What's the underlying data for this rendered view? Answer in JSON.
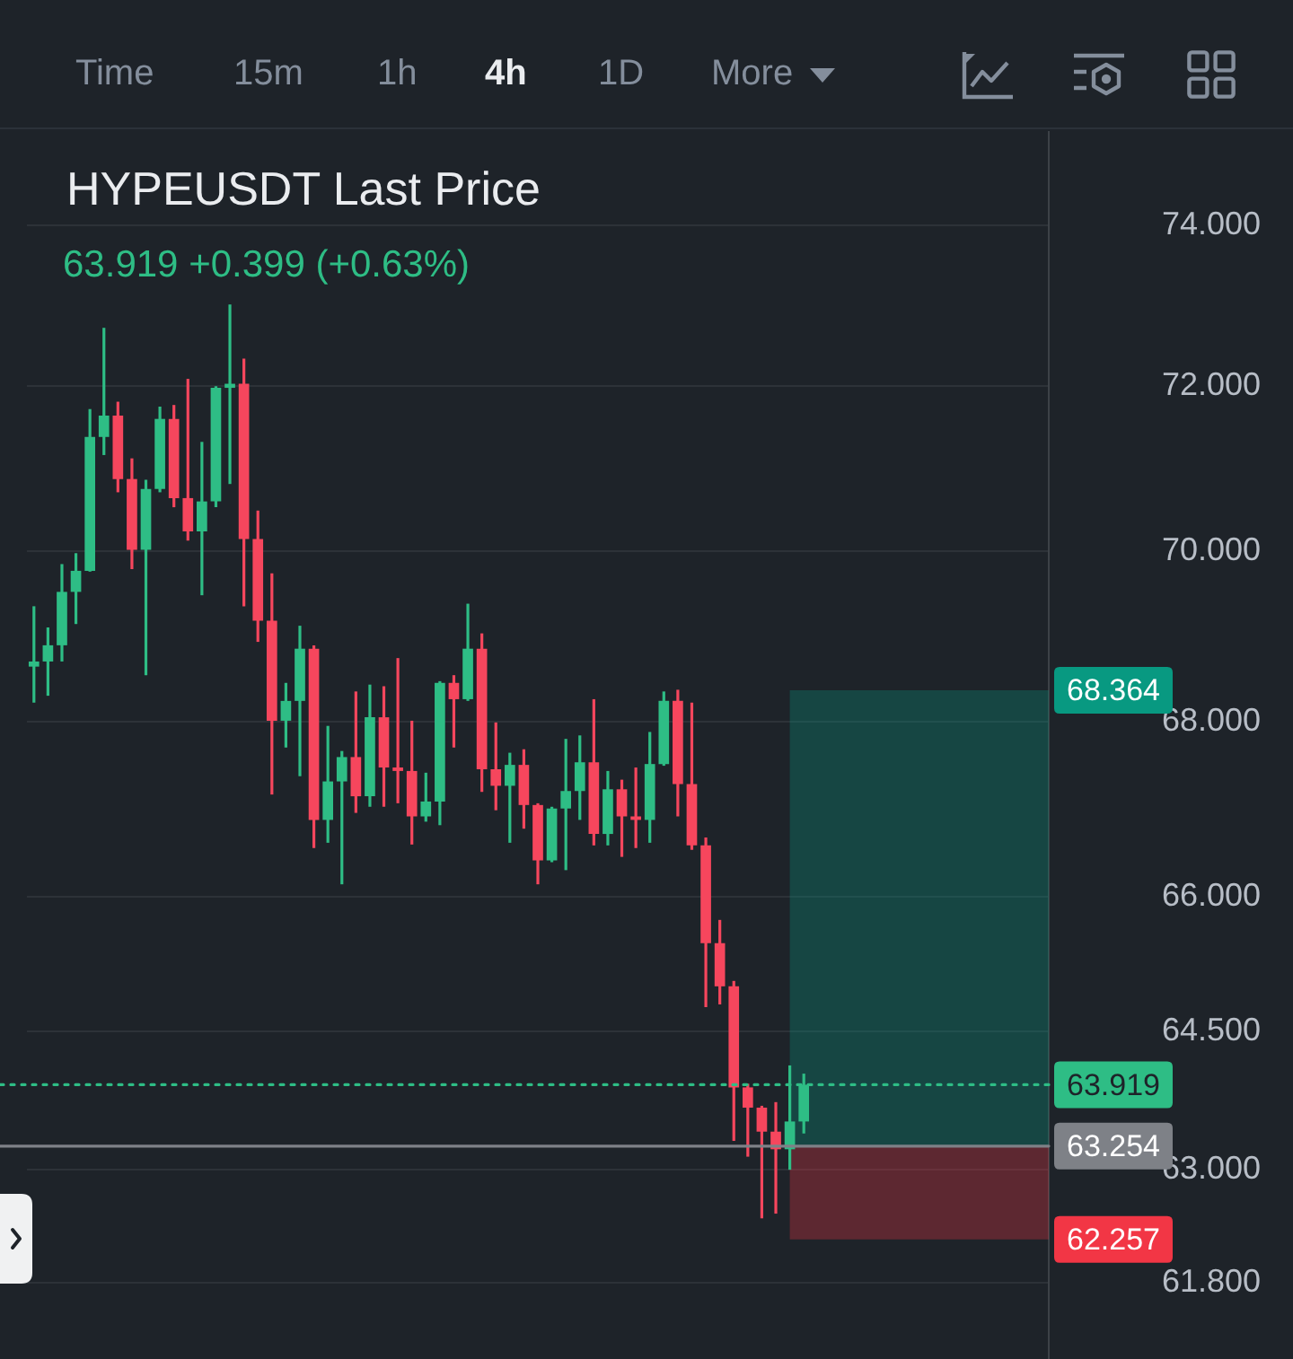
{
  "chart_data": {
    "type": "candlestick",
    "title": "HYPEUSDT Last Price",
    "subtitle": "63.919 +0.399 (+0.63%)",
    "annotations": [
      "Time",
      "15m",
      "1h",
      "4h",
      "1D",
      "More"
    ],
    "categories": [
      null,
      null,
      null,
      null,
      null,
      null,
      null,
      null,
      null,
      null,
      null,
      null,
      null,
      null,
      null,
      null,
      null,
      null,
      null,
      null,
      null,
      null,
      null,
      null,
      null,
      null,
      null,
      null,
      null,
      null,
      null,
      null,
      null,
      null,
      null,
      null,
      null,
      null,
      null,
      null,
      null,
      null,
      null,
      null,
      null,
      null,
      null,
      null,
      null,
      null,
      null,
      null,
      null,
      null,
      null,
      null,
      null,
      null,
      null,
      null,
      null,
      null,
      null,
      null,
      null,
      null,
      null,
      null,
      null,
      null,
      null,
      null,
      null
    ],
    "ohlc": [
      [
        68.64,
        69.35,
        68.22,
        68.7
      ],
      [
        68.7,
        69.1,
        68.3,
        68.89
      ],
      [
        68.89,
        69.85,
        68.7,
        69.52
      ],
      [
        69.52,
        69.98,
        69.14,
        69.77
      ],
      [
        69.77,
        71.72,
        69.76,
        71.38
      ],
      [
        71.38,
        72.72,
        71.16,
        71.64
      ],
      [
        71.64,
        71.81,
        70.71,
        70.87
      ],
      [
        70.87,
        71.12,
        69.79,
        70.02
      ],
      [
        70.02,
        70.86,
        68.54,
        70.75
      ],
      [
        70.75,
        71.75,
        70.71,
        71.6
      ],
      [
        71.6,
        71.77,
        70.53,
        70.64
      ],
      [
        70.64,
        72.09,
        70.13,
        70.24
      ],
      [
        70.24,
        71.32,
        69.48,
        70.6
      ],
      [
        70.6,
        72.0,
        70.53,
        71.98
      ],
      [
        71.98,
        73.01,
        70.81,
        72.03
      ],
      [
        72.03,
        72.34,
        69.35,
        70.15
      ],
      [
        70.15,
        70.49,
        68.93,
        69.18
      ],
      [
        69.18,
        69.74,
        67.16,
        68.01
      ],
      [
        68.01,
        68.45,
        67.7,
        68.24
      ],
      [
        68.24,
        69.12,
        67.37,
        68.85
      ],
      [
        68.85,
        68.89,
        66.55,
        66.87
      ],
      [
        66.87,
        67.95,
        66.61,
        67.31
      ],
      [
        67.31,
        67.66,
        66.14,
        67.59
      ],
      [
        67.59,
        68.35,
        66.95,
        67.14
      ],
      [
        67.14,
        68.43,
        67.02,
        68.05
      ],
      [
        68.05,
        68.41,
        67.02,
        67.47
      ],
      [
        67.47,
        68.74,
        67.06,
        67.43
      ],
      [
        67.43,
        68.01,
        66.59,
        66.91
      ],
      [
        66.91,
        67.41,
        66.85,
        67.08
      ],
      [
        67.08,
        68.47,
        66.81,
        68.45
      ],
      [
        68.45,
        68.54,
        67.7,
        68.26
      ],
      [
        68.26,
        69.38,
        68.24,
        68.85
      ],
      [
        68.85,
        69.03,
        67.19,
        67.45
      ],
      [
        67.45,
        67.99,
        66.98,
        67.26
      ],
      [
        67.26,
        67.64,
        66.61,
        67.5
      ],
      [
        67.5,
        67.68,
        66.77,
        67.04
      ],
      [
        67.04,
        67.06,
        66.14,
        66.41
      ],
      [
        66.41,
        67.02,
        66.39,
        67.0
      ],
      [
        67.0,
        67.8,
        66.3,
        67.2
      ],
      [
        67.2,
        67.84,
        66.87,
        67.53
      ],
      [
        67.53,
        68.26,
        66.58,
        66.71
      ],
      [
        66.71,
        67.43,
        66.58,
        67.22
      ],
      [
        67.22,
        67.33,
        66.45,
        66.91
      ],
      [
        66.91,
        67.47,
        66.55,
        66.87
      ],
      [
        66.87,
        67.88,
        66.61,
        67.51
      ],
      [
        67.51,
        68.35,
        67.49,
        68.24
      ],
      [
        68.24,
        68.37,
        66.91,
        67.28
      ],
      [
        67.28,
        68.22,
        66.53,
        66.58
      ],
      [
        66.58,
        66.67,
        64.77,
        65.48
      ],
      [
        65.48,
        65.74,
        64.8,
        65.0
      ],
      [
        65.0,
        65.06,
        63.31,
        63.89
      ],
      [
        63.89,
        63.93,
        63.14,
        63.67
      ],
      [
        63.67,
        63.69,
        62.48,
        63.41
      ],
      [
        63.41,
        63.73,
        62.53,
        63.22
      ],
      [
        63.22,
        64.13,
        63.0,
        63.52
      ],
      [
        63.52,
        64.04,
        63.39,
        63.919
      ],
      null,
      null,
      null,
      null,
      null,
      null,
      null,
      null,
      null,
      null,
      null,
      null,
      null,
      null,
      null,
      null,
      null
    ],
    "colors": [
      "#2ebd85",
      "#2ebd85",
      "#2ebd85",
      "#2ebd85",
      "#2ebd85",
      "#2ebd85",
      "#f6465d",
      "#f6465d",
      "#2ebd85",
      "#2ebd85",
      "#f6465d",
      "#f6465d",
      "#2ebd85",
      "#2ebd85",
      "#2ebd85",
      "#f6465d",
      "#f6465d",
      "#f6465d",
      "#2ebd85",
      "#2ebd85",
      "#f6465d",
      "#2ebd85",
      "#2ebd85",
      "#f6465d",
      "#2ebd85",
      "#f6465d",
      "#f6465d",
      "#f6465d",
      "#2ebd85",
      "#2ebd85",
      "#f6465d",
      "#2ebd85",
      "#f6465d",
      "#f6465d",
      "#2ebd85",
      "#f6465d",
      "#f6465d",
      "#2ebd85",
      "#2ebd85",
      "#2ebd85",
      "#f6465d",
      "#2ebd85",
      "#f6465d",
      "#f6465d",
      "#2ebd85",
      "#2ebd85",
      "#f6465d",
      "#f6465d",
      "#f6465d",
      "#f6465d",
      "#f6465d",
      "#f6465d",
      "#f6465d",
      "#f6465d",
      "#2ebd85",
      "#2ebd85",
      null,
      null,
      null,
      null,
      null,
      null,
      null,
      null,
      null,
      null,
      null,
      null,
      null,
      null,
      null,
      null,
      null
    ],
    "log": true,
    "ylim": [
      61,
      75.2
    ],
    "yticks": [
      {
        "value": 61.8,
        "label": "61.800"
      },
      {
        "value": 63,
        "label": "63.000"
      },
      {
        "value": 64.5,
        "label": "64.500"
      },
      {
        "value": 66,
        "label": "66.000"
      },
      {
        "value": 68,
        "label": "68.000"
      },
      {
        "value": 70,
        "label": "70.000"
      },
      {
        "value": 72,
        "label": "72.000"
      },
      {
        "value": 74,
        "label": "74.000"
      }
    ],
    "grid": "y",
    "ref_lines": [
      {
        "axis": "y",
        "value": 63.919,
        "label": "63.919",
        "color": "#2ebd85",
        "line_style": "dotted"
      },
      {
        "axis": "y",
        "value": 63.254,
        "label": "63.254",
        "color": "#7e8187",
        "line_style": "solid"
      }
    ],
    "bands": [
      {
        "axis": "y",
        "from": 63.254,
        "to": 68.364,
        "label": "68.364",
        "color": "#089981"
      },
      {
        "axis": "y",
        "from": 63.254,
        "to": 62.257,
        "label": "62.257",
        "color": "#f23645"
      }
    ]
  }
}
